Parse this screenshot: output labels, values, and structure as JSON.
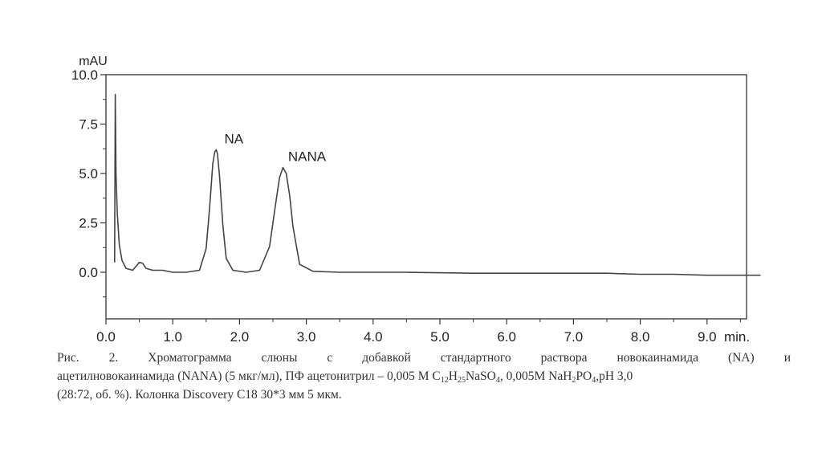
{
  "chart_data": {
    "type": "line",
    "ylabel": "mAU",
    "xlabel": "min.",
    "xlim": [
      0.0,
      9.8
    ],
    "ylim": [
      -2.3,
      10.0
    ],
    "x_ticks": [
      "0.0",
      "1.0",
      "2.0",
      "3.0",
      "4.0",
      "5.0",
      "6.0",
      "7.0",
      "8.0",
      "9.0"
    ],
    "y_ticks": [
      "0.0",
      "2.5",
      "5.0",
      "7.5",
      "10.0"
    ],
    "peaks": [
      {
        "label": "NA",
        "retention_time": 1.65,
        "height": 6.2
      },
      {
        "label": "NANA",
        "retention_time": 2.65,
        "height": 5.3
      }
    ],
    "series": [
      {
        "x": [
          0.13,
          0.14,
          0.15,
          0.16,
          0.17,
          0.2,
          0.24,
          0.3,
          0.4,
          0.5,
          0.55,
          0.6,
          0.7,
          0.85,
          1.0,
          1.2,
          1.4,
          1.5,
          1.55,
          1.6,
          1.63,
          1.65,
          1.67,
          1.7,
          1.75,
          1.8,
          1.9,
          2.1,
          2.3,
          2.45,
          2.55,
          2.6,
          2.65,
          2.7,
          2.75,
          2.8,
          2.9,
          3.1,
          3.5,
          4.5,
          5.5,
          6.5,
          7.5,
          8.0,
          8.5,
          9.0,
          9.5,
          9.8
        ],
        "y": [
          0.5,
          9.0,
          5.0,
          4.0,
          3.0,
          1.4,
          0.6,
          0.2,
          0.1,
          0.5,
          0.45,
          0.2,
          0.1,
          0.1,
          0.0,
          0.0,
          0.1,
          1.2,
          3.2,
          5.5,
          6.1,
          6.2,
          6.0,
          4.9,
          2.4,
          0.7,
          0.1,
          0.0,
          0.1,
          1.3,
          3.7,
          4.8,
          5.3,
          5.0,
          3.9,
          2.3,
          0.4,
          0.05,
          0.0,
          0.0,
          -0.05,
          -0.05,
          -0.05,
          -0.1,
          -0.1,
          -0.15,
          -0.15,
          -0.15
        ]
      }
    ],
    "grid": false,
    "legend": "none"
  },
  "caption": {
    "line1": "Рис. 2. Хроматограмма слюны с добавкой стандартного раствора новокаинамида (NA) и",
    "line2_pre": "ацетилновокаинамида (NANA) (5 мкг/мл), ПФ ацетонитрил – 0,005 М C",
    "sub1": "12",
    "mid1": "H",
    "sub2": "25",
    "mid2": "NaSO",
    "sub3": "4",
    "mid3": ", 0,005M NaH",
    "sub4": "2",
    "mid4": "PO",
    "sub5": "4",
    "line2_post": ",pH 3,0",
    "line3": "(28:72, об. %). Колонка Discovery C18 30*3 мм 5 мкм."
  }
}
